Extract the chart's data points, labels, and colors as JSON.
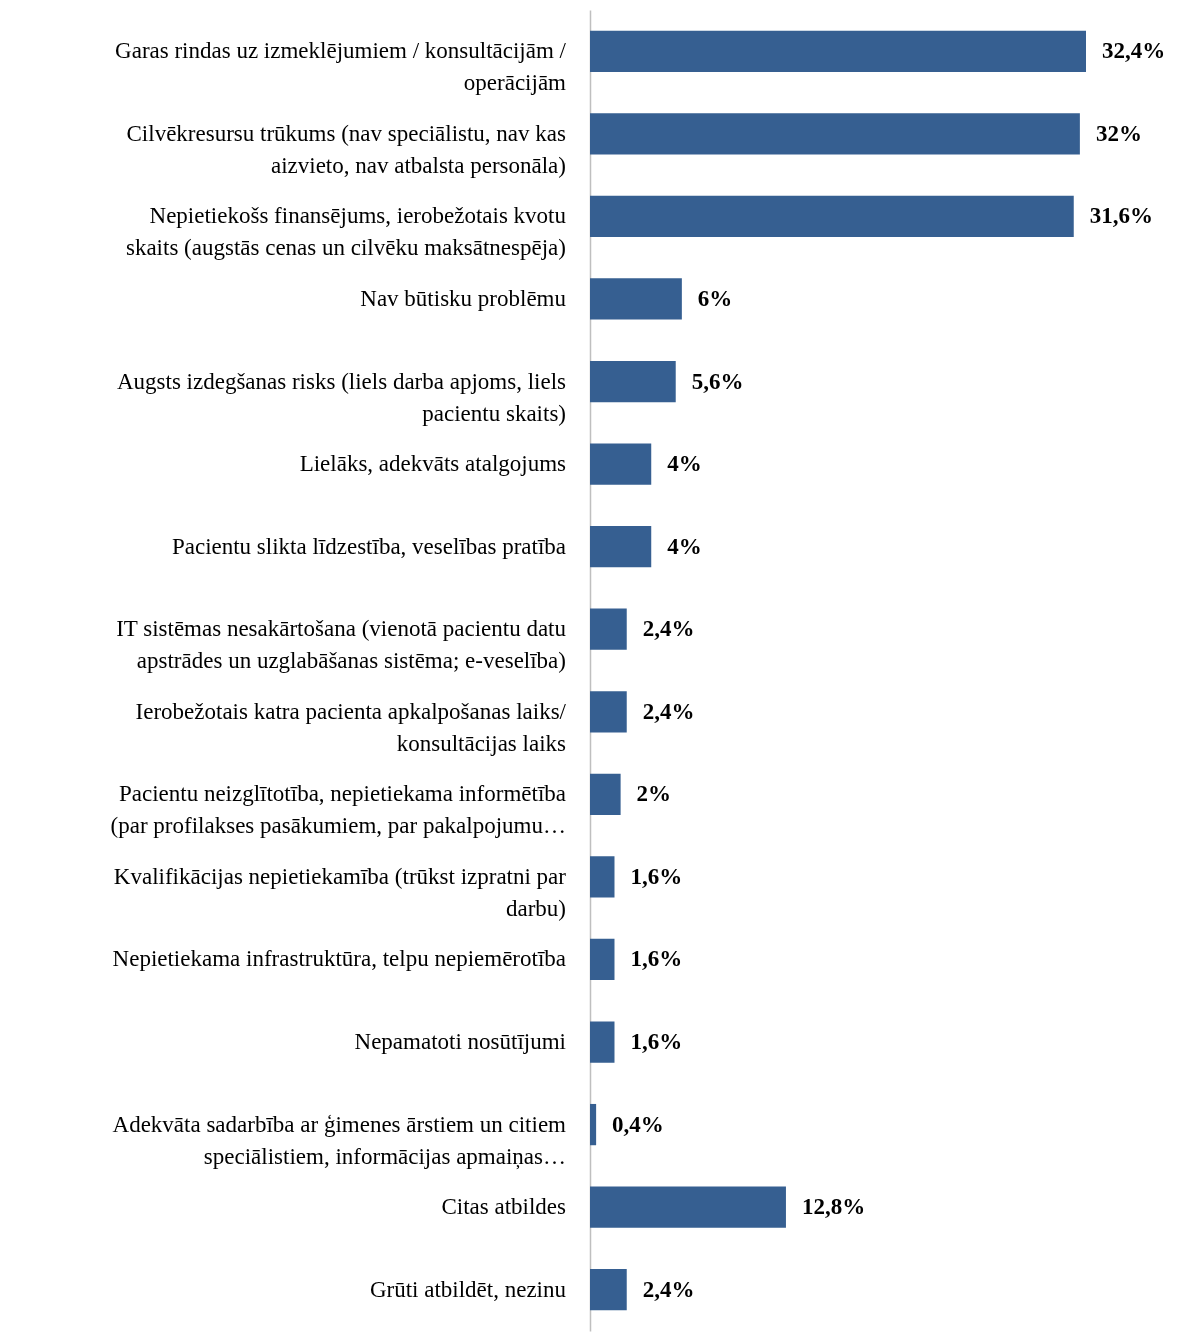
{
  "chart_data": {
    "type": "bar",
    "orientation": "horizontal",
    "categories": [
      "Garas rindas uz izmeklējumiem / konsultācijām / operācijām",
      "Cilvēkresursu trūkums (nav speciālistu, nav kas aizvieto, nav atbalsta personāla)",
      "Nepietiekošs finansējums, ierobežotais kvotu skaits (augstās cenas un cilvēku maksātnespēja)",
      "Nav būtisku problēmu",
      "Augsts izdegšanas risks (liels darba apjoms, liels pacientu skaits)",
      "Lielāks, adekvāts atalgojums",
      "Pacientu slikta līdzestība, veselības pratība",
      "IT sistēmas nesakārtošana (vienotā pacientu datu apstrādes un uzglabāšanas sistēma; e-veselība)",
      "Ierobežotais katra pacienta apkalpošanas laiks/ konsultācijas laiks",
      "Pacientu neizglītotība, nepietiekama informētība (par profilakses pasākumiem, par pakalpojumu…",
      "Kvalifikācijas nepietiekamība (trūkst izpratni par darbu)",
      "Nepietiekama infrastruktūra, telpu nepiemērotība",
      "Nepamatoti nosūtījumi",
      "Adekvāta sadarbība ar ģimenes ārstiem un citiem speciālistiem, informācijas apmaiņas…",
      "Citas atbildes",
      "Grūti atbildēt, nezinu"
    ],
    "values": [
      32.4,
      32,
      31.6,
      6,
      5.6,
      4,
      4,
      2.4,
      2.4,
      2,
      1.6,
      1.6,
      1.6,
      0.4,
      12.8,
      2.4
    ],
    "value_labels": [
      "32,4%",
      "32%",
      "31,6%",
      "6%",
      "5,6%",
      "4%",
      "4%",
      "2,4%",
      "2,4%",
      "2%",
      "1,6%",
      "1,6%",
      "1,6%",
      "0,4%",
      "12,8%",
      "2,4%"
    ],
    "color": "#365f91",
    "grid": false
  }
}
